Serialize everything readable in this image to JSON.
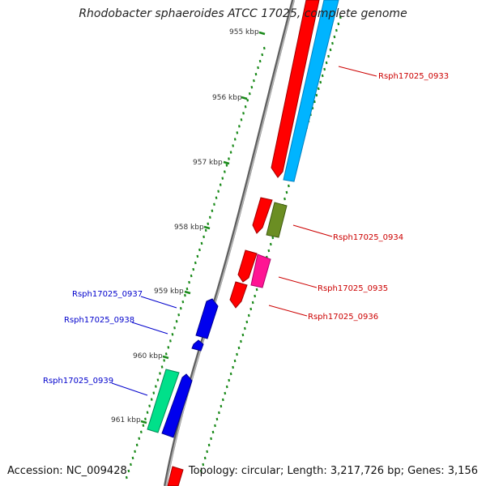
{
  "title": "Rhodobacter sphaeroides ATCC 17025, complete genome",
  "footer": {
    "accession": "Accession: NC_009428",
    "topology": "Topology: circular; Length: 3,217,726 bp; Genes: 3,156"
  },
  "colors": {
    "backbone": "#808080",
    "tick": "#1a8a1a",
    "tick_label": "#333333",
    "forward_label": "#cc0000",
    "reverse_label": "#0000cc",
    "red_feature": "#ff0000",
    "cyan_feature": "#00b4ff",
    "olive_feature": "#6b8e23",
    "magenta_feature": "#ff1493",
    "blue_feature": "#0000ee",
    "seagreen_feature": "#00e08a"
  },
  "ruler": [
    "955 kbp",
    "956 kbp",
    "957 kbp",
    "958 kbp",
    "959 kbp",
    "960 kbp",
    "961 kbp"
  ],
  "gene_labels": [
    {
      "text": "Rsph17025_0933",
      "strand": "forward"
    },
    {
      "text": "Rsph17025_0934",
      "strand": "forward"
    },
    {
      "text": "Rsph17025_0935",
      "strand": "forward"
    },
    {
      "text": "Rsph17025_0936",
      "strand": "forward"
    },
    {
      "text": "Rsph17025_0937",
      "strand": "reverse"
    },
    {
      "text": "Rsph17025_0938",
      "strand": "reverse"
    },
    {
      "text": "Rsph17025_0939",
      "strand": "reverse"
    }
  ]
}
